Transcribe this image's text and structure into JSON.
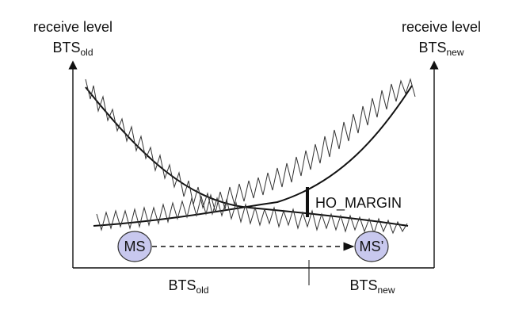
{
  "left_axis": {
    "line1": "receive level",
    "base": "BTS",
    "sub": "old"
  },
  "right_axis": {
    "line1": "receive level",
    "base": "BTS",
    "sub": "new"
  },
  "bottom_left": {
    "base": "BTS",
    "sub": "old"
  },
  "bottom_right": {
    "base": "BTS",
    "sub": "new"
  },
  "margin_label": "HO_MARGIN",
  "ms_label": "MS",
  "ms_prime_label": "MS’",
  "colors": {
    "node_fill": "#c8c8ee",
    "node_stroke": "#333333",
    "line": "#111111"
  }
}
